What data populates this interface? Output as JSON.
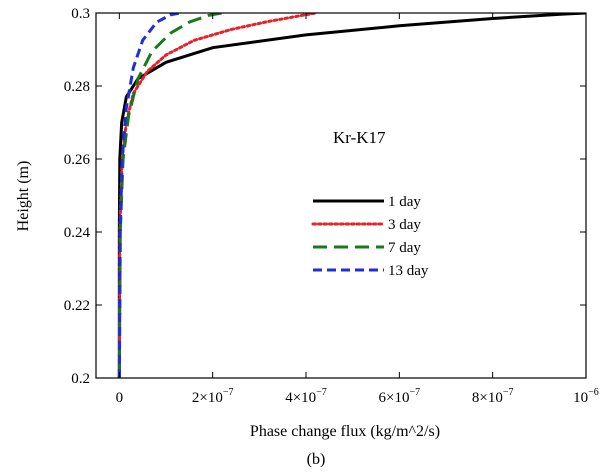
{
  "chart_data": {
    "type": "line",
    "title": "",
    "xlabel": "Phase change flux (kg/m^2/s)",
    "ylabel": "Height (m)",
    "caption": "(b)",
    "annotation": "Kr-K17",
    "xlim": [
      -5e-08,
      1e-06
    ],
    "ylim": [
      0.2,
      0.3
    ],
    "x_ticks": [
      {
        "value": 0,
        "label": "0",
        "exp": ""
      },
      {
        "value": 2e-07,
        "label": "2×10",
        "exp": "−7"
      },
      {
        "value": 4e-07,
        "label": "4×10",
        "exp": "−7"
      },
      {
        "value": 6e-07,
        "label": "6×10",
        "exp": "−7"
      },
      {
        "value": 8e-07,
        "label": "8×10",
        "exp": "−7"
      },
      {
        "value": 1e-06,
        "label": "10",
        "exp": "−6"
      }
    ],
    "y_ticks": [
      {
        "value": 0.2,
        "label": "0.2"
      },
      {
        "value": 0.22,
        "label": "0.22"
      },
      {
        "value": 0.24,
        "label": "0.24"
      },
      {
        "value": 0.26,
        "label": "0.26"
      },
      {
        "value": 0.28,
        "label": "0.28"
      },
      {
        "value": 0.3,
        "label": "0.3"
      }
    ],
    "grid": false,
    "legend_position": "center-right",
    "series": [
      {
        "name": "1 day",
        "color": "#000000",
        "style": "solid",
        "points": [
          [
            0,
            0.2
          ],
          [
            0,
            0.24
          ],
          [
            1e-09,
            0.26
          ],
          [
            5e-09,
            0.27
          ],
          [
            1.5e-08,
            0.277
          ],
          [
            4e-08,
            0.282
          ],
          [
            1e-07,
            0.2865
          ],
          [
            2e-07,
            0.2905
          ],
          [
            4e-07,
            0.294
          ],
          [
            6e-07,
            0.2965
          ],
          [
            8e-07,
            0.2985
          ],
          [
            9.5e-07,
            0.2997
          ],
          [
            1e-06,
            0.3
          ]
        ]
      },
      {
        "name": "3 day",
        "color": "#e8202a",
        "style": "dotted",
        "points": [
          [
            0,
            0.2
          ],
          [
            1e-09,
            0.24
          ],
          [
            6e-09,
            0.26
          ],
          [
            1.5e-08,
            0.27
          ],
          [
            3e-08,
            0.278
          ],
          [
            6e-08,
            0.284
          ],
          [
            1e-07,
            0.2885
          ],
          [
            1.6e-07,
            0.2925
          ],
          [
            2.4e-07,
            0.2955
          ],
          [
            3.2e-07,
            0.2977
          ],
          [
            4.2e-07,
            0.3
          ]
        ]
      },
      {
        "name": "7 day",
        "color": "#1a7a1a",
        "style": "dashed",
        "points": [
          [
            0,
            0.2
          ],
          [
            2e-09,
            0.24
          ],
          [
            8e-09,
            0.26
          ],
          [
            2e-08,
            0.272
          ],
          [
            4e-08,
            0.282
          ],
          [
            7e-08,
            0.2895
          ],
          [
            1.1e-07,
            0.2945
          ],
          [
            1.5e-07,
            0.2975
          ],
          [
            1.9e-07,
            0.2993
          ],
          [
            2.2e-07,
            0.3
          ]
        ]
      },
      {
        "name": "13 day",
        "color": "#1f2fd8",
        "style": "dashed",
        "points": [
          [
            0,
            0.2
          ],
          [
            2e-09,
            0.24
          ],
          [
            6e-09,
            0.26
          ],
          [
            1.5e-08,
            0.274
          ],
          [
            3e-08,
            0.285
          ],
          [
            5e-08,
            0.2925
          ],
          [
            8e-08,
            0.2975
          ],
          [
            1.1e-07,
            0.2995
          ],
          [
            1.3e-07,
            0.3
          ]
        ]
      }
    ]
  }
}
